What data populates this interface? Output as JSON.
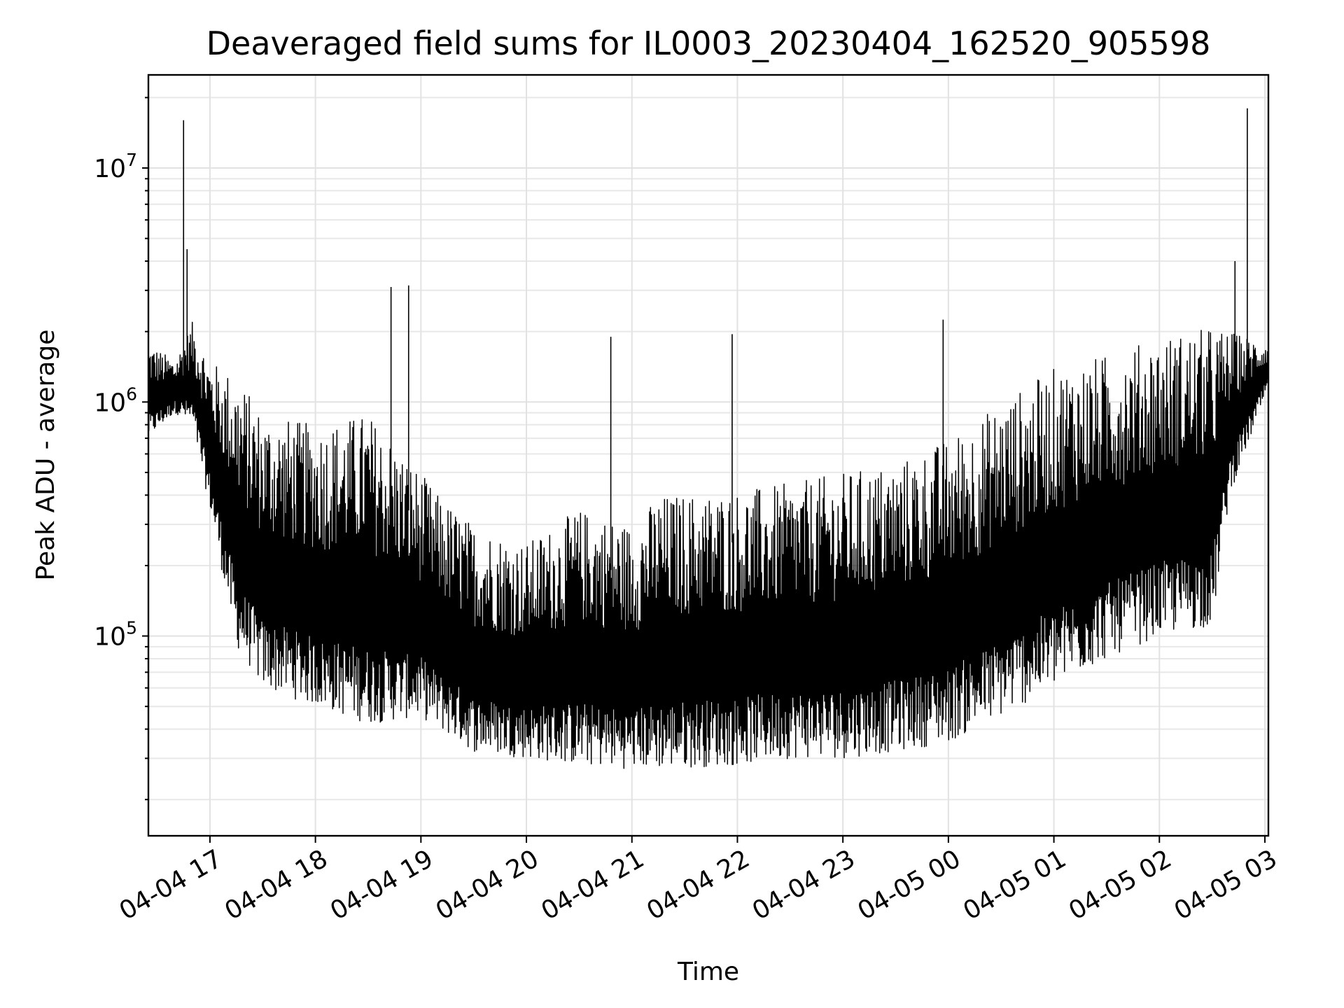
{
  "chart_data": {
    "type": "line",
    "title": "Deaveraged field sums for IL0003_20230404_162520_905598",
    "xlabel": "Time",
    "ylabel": "Peak ADU - average",
    "yscale": "log",
    "xlim": [
      "2023-04-04 16:25",
      "2023-04-05 03:02"
    ],
    "ylim": [
      14000,
      25000000
    ],
    "grid": true,
    "x_ticks": [
      {
        "value": "2023-04-04 17:00",
        "label": "04-04 17"
      },
      {
        "value": "2023-04-04 18:00",
        "label": "04-04 18"
      },
      {
        "value": "2023-04-04 19:00",
        "label": "04-04 19"
      },
      {
        "value": "2023-04-04 20:00",
        "label": "04-04 20"
      },
      {
        "value": "2023-04-04 21:00",
        "label": "04-04 21"
      },
      {
        "value": "2023-04-04 22:00",
        "label": "04-04 22"
      },
      {
        "value": "2023-04-04 23:00",
        "label": "04-04 23"
      },
      {
        "value": "2023-04-05 00:00",
        "label": "04-05 00"
      },
      {
        "value": "2023-04-05 01:00",
        "label": "04-05 01"
      },
      {
        "value": "2023-04-05 02:00",
        "label": "04-05 02"
      },
      {
        "value": "2023-04-05 03:00",
        "label": "04-05 03"
      }
    ],
    "y_ticks": [
      {
        "value": 100000,
        "base": "10",
        "exp": "5"
      },
      {
        "value": 1000000,
        "base": "10",
        "exp": "6"
      },
      {
        "value": 10000000,
        "base": "10",
        "exp": "7"
      }
    ],
    "series": [
      {
        "color": "#000000",
        "envelope": {
          "x": [
            "2023-04-04 16:25",
            "2023-04-04 16:40",
            "2023-04-04 16:50",
            "2023-04-04 17:00",
            "2023-04-04 17:15",
            "2023-04-04 17:30",
            "2023-04-04 18:00",
            "2023-04-04 18:30",
            "2023-04-04 19:00",
            "2023-04-04 19:10",
            "2023-04-04 19:30",
            "2023-04-04 20:00",
            "2023-04-04 20:30",
            "2023-04-04 21:00",
            "2023-04-04 21:15",
            "2023-04-04 22:00",
            "2023-04-04 22:30",
            "2023-04-04 23:00",
            "2023-04-04 23:30",
            "2023-04-05 00:00",
            "2023-04-05 00:30",
            "2023-04-05 01:00",
            "2023-04-05 01:30",
            "2023-04-05 02:00",
            "2023-04-05 02:30",
            "2023-04-05 02:40",
            "2023-04-05 03:02"
          ],
          "low": [
            700000,
            900000,
            800000,
            350000,
            90000,
            60000,
            50000,
            42000,
            45000,
            40000,
            32000,
            30000,
            28000,
            27000,
            27000,
            28000,
            30000,
            30000,
            32000,
            35000,
            45000,
            60000,
            80000,
            100000,
            110000,
            400000,
            1150000
          ],
          "high": [
            1800000,
            1500000,
            2200000,
            1500000,
            1300000,
            900000,
            800000,
            900000,
            500000,
            400000,
            300000,
            250000,
            350000,
            300000,
            400000,
            420000,
            450000,
            500000,
            550000,
            700000,
            1000000,
            1400000,
            1600000,
            1900000,
            2100000,
            2000000,
            1800000
          ]
        },
        "spikes": [
          {
            "x": "2023-04-04 16:45",
            "y": 16000000
          },
          {
            "x": "2023-04-04 16:47",
            "y": 4500000
          },
          {
            "x": "2023-04-04 18:43",
            "y": 3100000
          },
          {
            "x": "2023-04-04 18:53",
            "y": 3150000
          },
          {
            "x": "2023-04-04 20:48",
            "y": 1900000
          },
          {
            "x": "2023-04-04 21:57",
            "y": 1950000
          },
          {
            "x": "2023-04-04 23:57",
            "y": 2250000
          },
          {
            "x": "2023-04-05 02:50",
            "y": 18000000
          },
          {
            "x": "2023-04-05 02:43",
            "y": 4000000
          }
        ]
      }
    ]
  }
}
